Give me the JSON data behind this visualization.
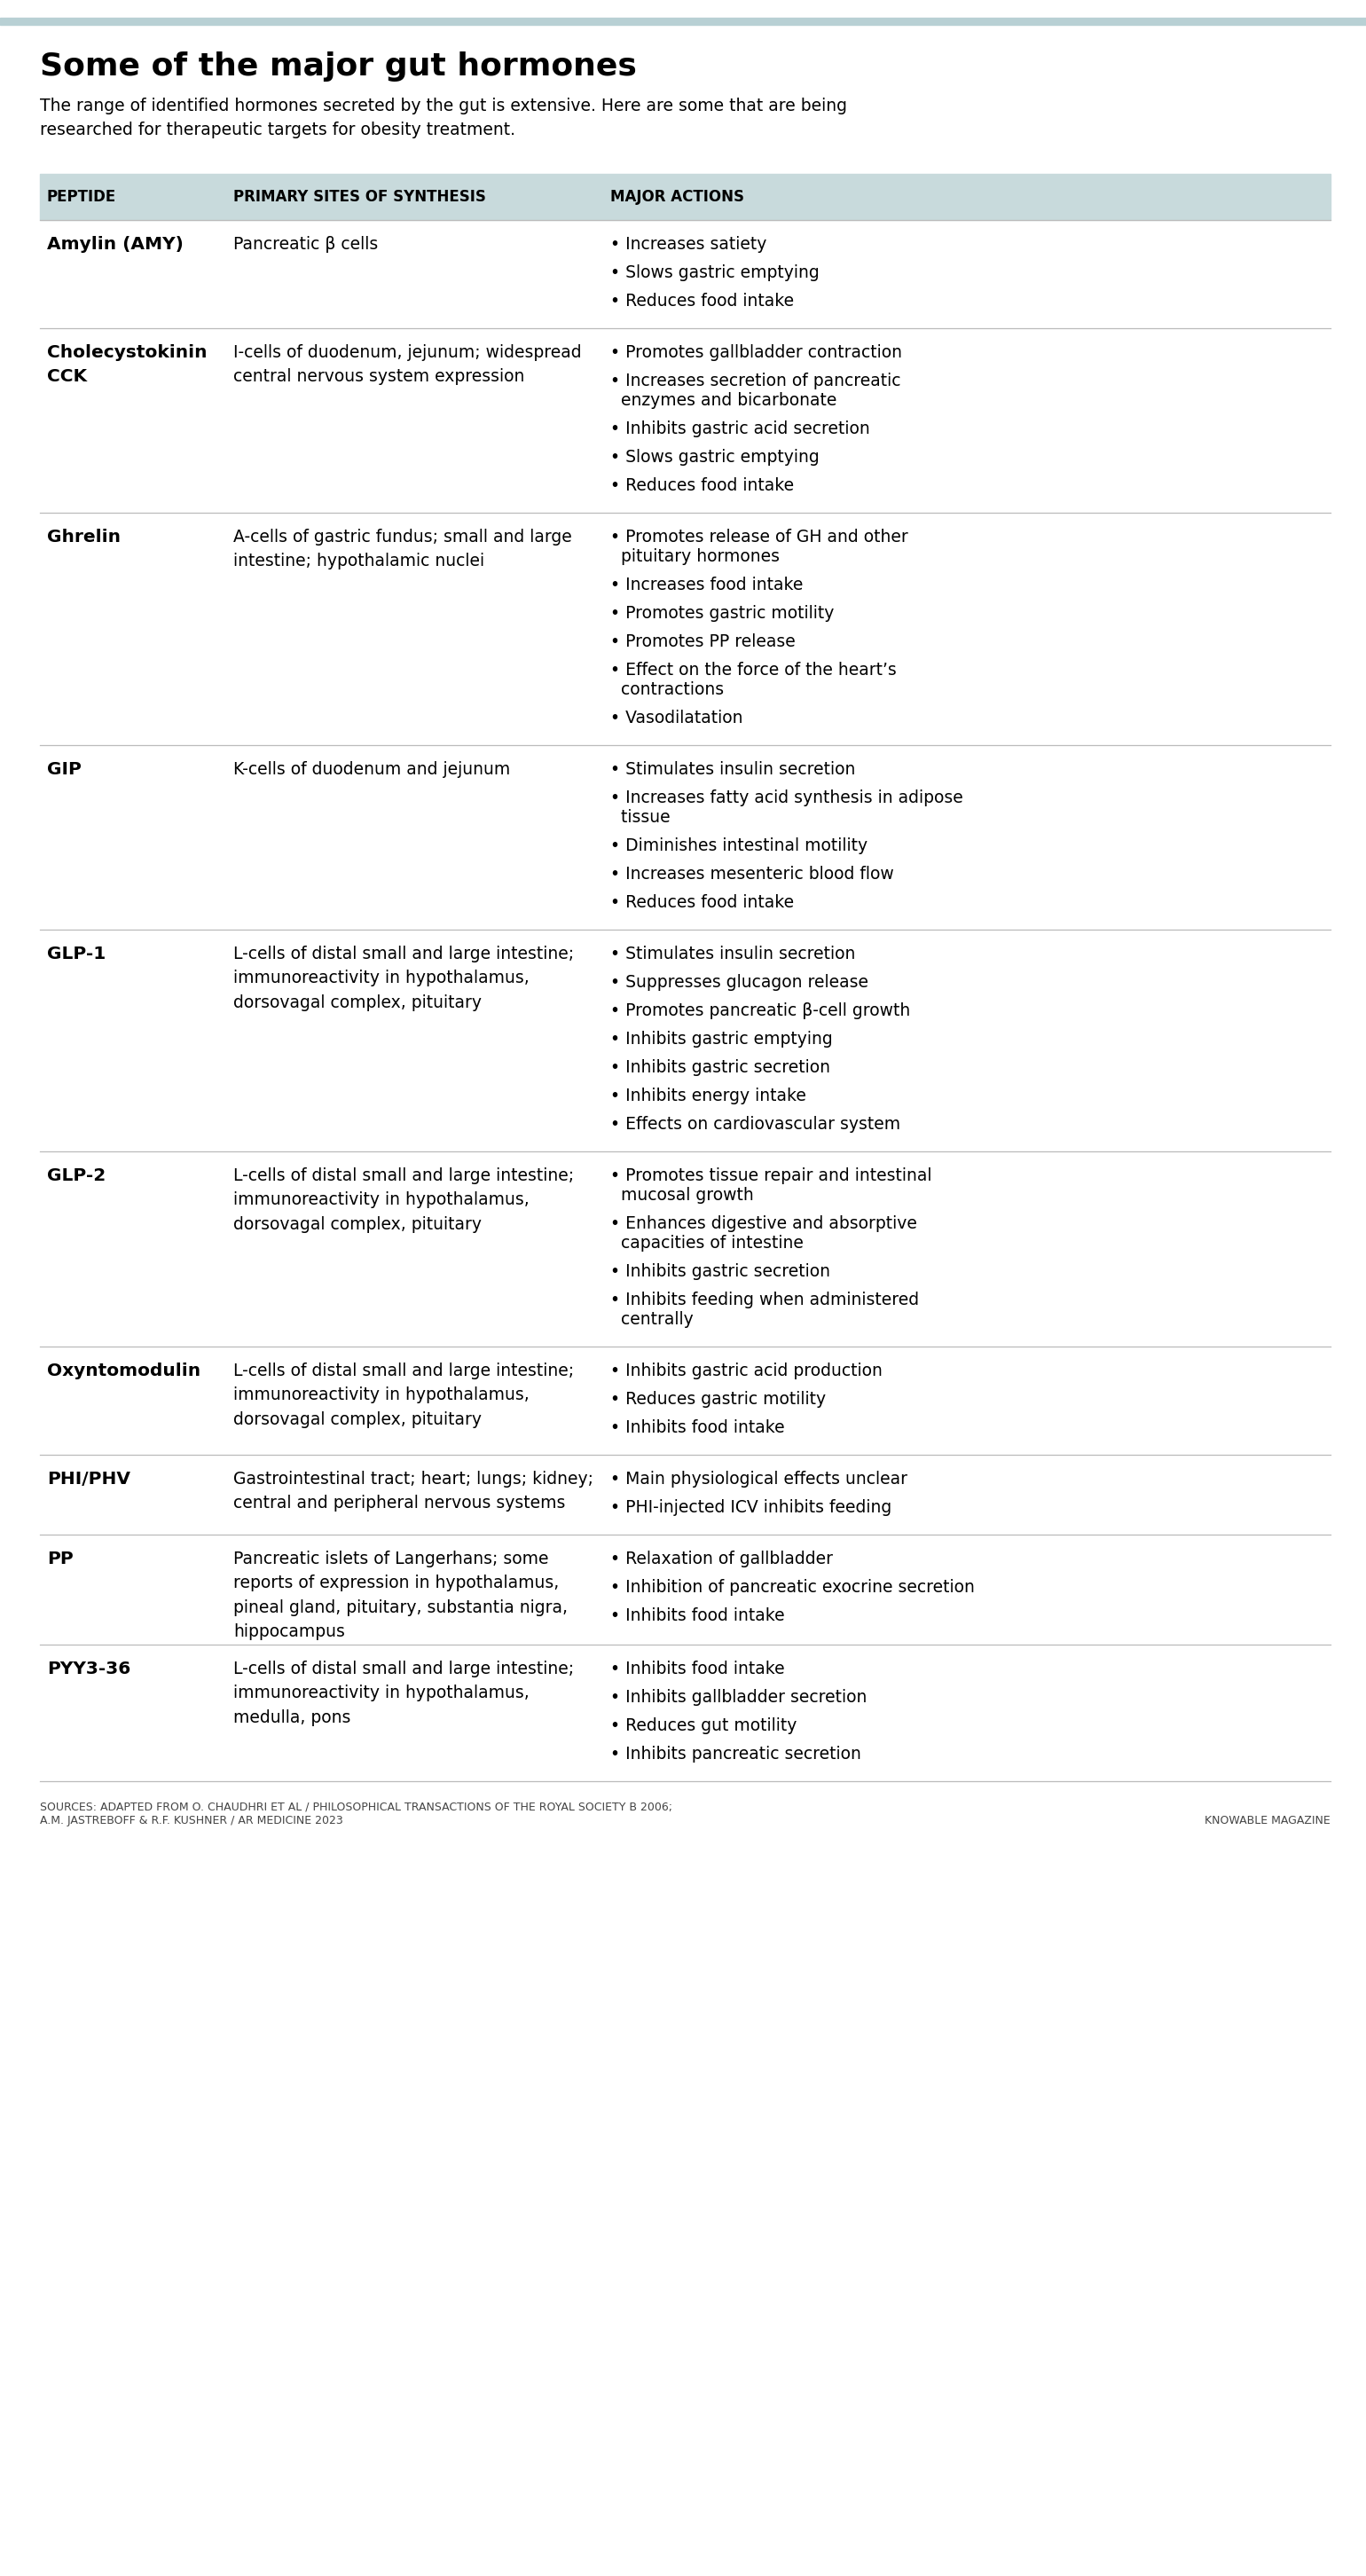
{
  "title": "Some of the major gut hormones",
  "subtitle": "The range of identified hormones secreted by the gut is extensive. Here are some that are being\nresearched for therapeutic targets for obesity treatment.",
  "header_bg": "#c8dadc",
  "top_bar_color": "#b8d0d4",
  "col_headers": [
    "PEPTIDE",
    "PRIMARY SITES OF SYNTHESIS",
    "MAJOR ACTIONS"
  ],
  "rows": [
    {
      "peptide": "Amylin (AMY)",
      "sites": "Pancreatic β cells",
      "actions": [
        "Increases satiety",
        "Slows gastric emptying",
        "Reduces food intake"
      ]
    },
    {
      "peptide": "Cholecystokinin\nCCK",
      "sites": "I-cells of duodenum, jejunum; widespread\ncentral nervous system expression",
      "actions": [
        "Promotes gallbladder contraction",
        "Increases secretion of pancreatic\n  enzymes and bicarbonate",
        "Inhibits gastric acid secretion",
        "Slows gastric emptying",
        "Reduces food intake"
      ]
    },
    {
      "peptide": "Ghrelin",
      "sites": "A-cells of gastric fundus; small and large\nintestine; hypothalamic nuclei",
      "actions": [
        "Promotes release of GH and other\n  pituitary hormones",
        "Increases food intake",
        "Promotes gastric motility",
        "Promotes PP release",
        "Effect on the force of the heart’s\n  contractions",
        "Vasodilatation"
      ]
    },
    {
      "peptide": "GIP",
      "sites": "K-cells of duodenum and jejunum",
      "actions": [
        "Stimulates insulin secretion",
        "Increases fatty acid synthesis in adipose\n  tissue",
        "Diminishes intestinal motility",
        "Increases mesenteric blood flow",
        "Reduces food intake"
      ]
    },
    {
      "peptide": "GLP-1",
      "sites": "L-cells of distal small and large intestine;\nimmunoreactivity in hypothalamus,\ndorsovagal complex, pituitary",
      "actions": [
        "Stimulates insulin secretion",
        "Suppresses glucagon release",
        "Promotes pancreatic β-cell growth",
        "Inhibits gastric emptying",
        "Inhibits gastric secretion",
        "Inhibits energy intake",
        "Effects on cardiovascular system"
      ]
    },
    {
      "peptide": "GLP-2",
      "sites": "L-cells of distal small and large intestine;\nimmunoreactivity in hypothalamus,\ndorsovagal complex, pituitary",
      "actions": [
        "Promotes tissue repair and intestinal\n  mucosal growth",
        "Enhances digestive and absorptive\n  capacities of intestine",
        "Inhibits gastric secretion",
        "Inhibits feeding when administered\n  centrally"
      ]
    },
    {
      "peptide": "Oxyntomodulin",
      "sites": "L-cells of distal small and large intestine;\nimmunoreactivity in hypothalamus,\ndorsovagal complex, pituitary",
      "actions": [
        "Inhibits gastric acid production",
        "Reduces gastric motility",
        "Inhibits food intake"
      ]
    },
    {
      "peptide": "PHI/PHV",
      "sites": "Gastrointestinal tract; heart; lungs; kidney;\ncentral and peripheral nervous systems",
      "actions": [
        "Main physiological effects unclear",
        "PHI-injected ICV inhibits feeding"
      ]
    },
    {
      "peptide": "PP",
      "sites": "Pancreatic islets of Langerhans; some\nreports of expression in hypothalamus,\npineal gland, pituitary, substantia nigra,\nhippocampus",
      "actions": [
        "Relaxation of gallbladder",
        "Inhibition of pancreatic exocrine secretion",
        "Inhibits food intake"
      ]
    },
    {
      "peptide": "PYY3-36",
      "sites": "L-cells of distal small and large intestine;\nimmunoreactivity in hypothalamus,\nmedulla, pons",
      "actions": [
        "Inhibits food intake",
        "Inhibits gallbladder secretion",
        "Reduces gut motility",
        "Inhibits pancreatic secretion"
      ]
    }
  ],
  "footer_left": "SOURCES: ADAPTED FROM O. CHAUDHRI ET AL / PHILOSOPHICAL TRANSACTIONS OF THE ROYAL SOCIETY B 2006;\nA.M. JASTREBOFF & R.F. KUSHNER / AR MEDICINE 2023",
  "footer_right": "KNOWABLE MAGAZINE",
  "bg_color": "#ffffff",
  "row_divider_color": "#bbbbbb",
  "text_color": "#000000",
  "header_text_color": "#000000"
}
